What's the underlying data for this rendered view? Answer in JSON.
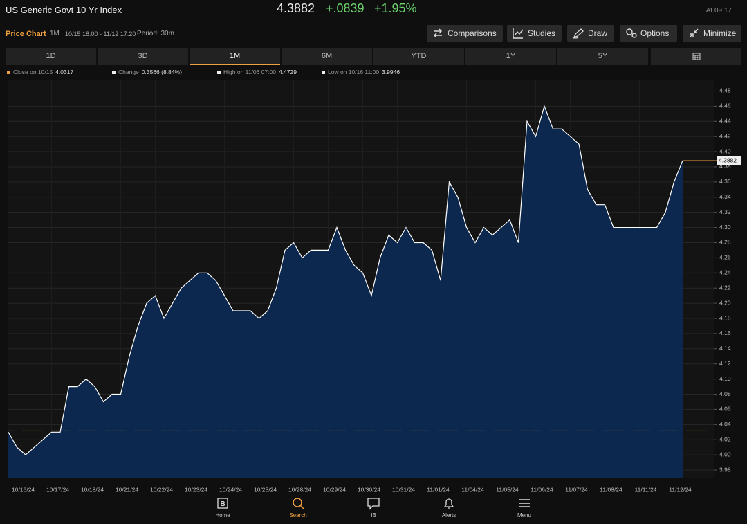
{
  "header": {
    "title": "US Generic Govt 10 Yr Index",
    "price": 4.3882,
    "change": "+.0839",
    "change_pct": "+1.95%",
    "time": "At 09:17"
  },
  "toolbar": {
    "title": "Price Chart",
    "range": "1M",
    "dates": "10/15 18:00 - 11/12 17:20",
    "period": "Period: 30m",
    "buttons": [
      "Comparisons",
      "Studies",
      "Draw",
      "Options",
      "Minimize"
    ]
  },
  "tabs": [
    "1D",
    "3D",
    "1M",
    "6M",
    "YTD",
    "1Y",
    "5Y"
  ],
  "stats": [
    {
      "label": "Close on 10/15",
      "value": 4.0317
    },
    {
      "label": "Change",
      "value": "0.3566 (8.84%)"
    },
    {
      "label": "High on 11/06 07:00",
      "value": 4.4729
    },
    {
      "label": "Low on 10/16 11:00",
      "value": 3.9946
    }
  ],
  "chart_data": {
    "type": "area",
    "color": "#ffffff",
    "fill": "#0c2a55",
    "grid": true,
    "categories": [
      null,
      "10/16/24",
      null,
      null,
      null,
      "10/17/24",
      null,
      null,
      null,
      "10/18/24",
      null,
      null,
      null,
      "10/21/24",
      null,
      null,
      null,
      "10/22/24",
      null,
      null,
      null,
      "10/23/24",
      null,
      null,
      null,
      "10/24/24",
      null,
      null,
      null,
      "10/25/24",
      null,
      null,
      null,
      "10/28/24",
      null,
      null,
      null,
      "10/29/24",
      null,
      null,
      null,
      "10/30/24",
      null,
      null,
      null,
      "10/31/24",
      null,
      null,
      null,
      "11/01/24",
      null,
      null,
      null,
      "11/04/24",
      null,
      null,
      null,
      "11/05/24",
      null,
      null,
      null,
      "11/06/24",
      null,
      null,
      null,
      "11/07/24",
      null,
      null,
      null,
      "11/08/24",
      null,
      null,
      null,
      "11/11/24",
      null,
      null,
      null,
      "11/12/24",
      null
    ],
    "values": [
      4.03,
      4.01,
      4.0,
      4.01,
      4.02,
      4.03,
      4.03,
      4.09,
      4.09,
      4.1,
      4.09,
      4.07,
      4.08,
      4.08,
      4.13,
      4.17,
      4.2,
      4.21,
      4.18,
      4.2,
      4.22,
      4.23,
      4.24,
      4.24,
      4.23,
      4.21,
      4.19,
      4.19,
      4.19,
      4.18,
      4.19,
      4.22,
      4.27,
      4.28,
      4.26,
      4.27,
      4.27,
      4.27,
      4.3,
      4.27,
      4.25,
      4.24,
      4.21,
      4.26,
      4.29,
      4.28,
      4.3,
      4.28,
      4.28,
      4.27,
      4.23,
      4.36,
      4.34,
      4.3,
      4.28,
      4.3,
      4.29,
      4.3,
      4.31,
      4.28,
      4.44,
      4.42,
      4.46,
      4.43,
      4.43,
      4.42,
      4.41,
      4.35,
      4.33,
      4.33,
      4.3,
      4.3,
      4.3,
      4.3,
      4.3,
      4.3,
      4.32,
      4.36,
      4.3882
    ],
    "ylim": [
      3.97,
      4.495
    ],
    "yticks": [
      3.98,
      {
        "value": 4.0,
        "label": "4.00"
      },
      4.02,
      4.04,
      4.06,
      4.08,
      {
        "value": 4.1,
        "label": "4.10"
      },
      4.12,
      4.14,
      4.16,
      4.18,
      {
        "value": 4.2,
        "label": "4.20"
      },
      4.22,
      4.24,
      4.26,
      4.28,
      {
        "value": 4.3,
        "label": "4.30"
      },
      4.32,
      4.34,
      4.36,
      4.38,
      {
        "value": 4.4,
        "label": "4.40"
      },
      4.42,
      4.44,
      4.46,
      4.48
    ]
  },
  "nav": [
    "Home",
    "Search",
    "IB",
    "Alerts",
    "Menu"
  ]
}
